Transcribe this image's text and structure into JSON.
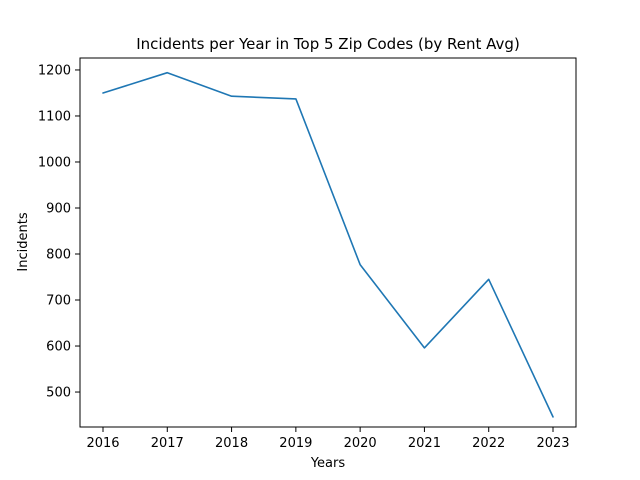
{
  "chart_data": {
    "type": "line",
    "title": "Incidents per Year in Top 5 Zip Codes (by Rent Avg)",
    "xlabel": "Years",
    "ylabel": "Incidents",
    "x": [
      "2016",
      "2017",
      "2018",
      "2019",
      "2020",
      "2021",
      "2022",
      "2023"
    ],
    "series": [
      {
        "values": [
          1150,
          1194,
          1143,
          1137,
          777,
          596,
          745,
          446
        ],
        "color": "#1f77b4"
      }
    ],
    "yticks": [
      500,
      600,
      700,
      800,
      900,
      1000,
      1100,
      1200
    ],
    "ylim": [
      424,
      1226
    ],
    "grid": false,
    "legend": "none"
  }
}
